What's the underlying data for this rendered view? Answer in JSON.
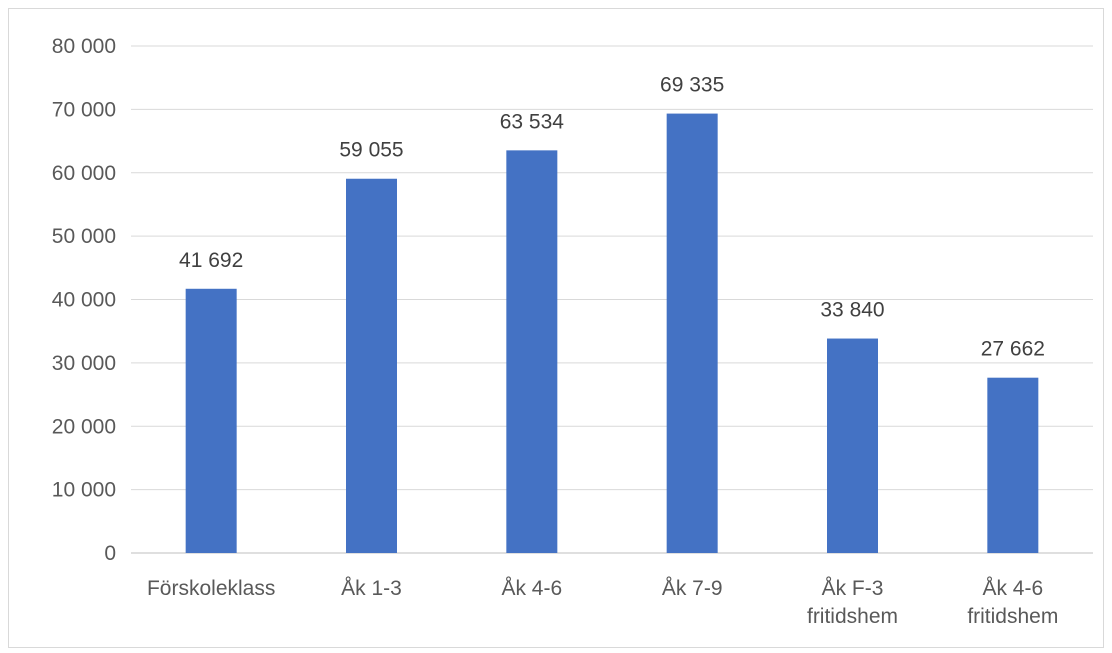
{
  "chart_data": {
    "type": "bar",
    "categories": [
      [
        "Förskoleklass"
      ],
      [
        "Åk 1-3"
      ],
      [
        "Åk 4-6"
      ],
      [
        "Åk 7-9"
      ],
      [
        "Åk F-3",
        "fritidshem"
      ],
      [
        "Åk 4-6",
        "fritidshem"
      ]
    ],
    "values": [
      41692,
      59055,
      63534,
      69335,
      33840,
      27662
    ],
    "data_labels": [
      "41 692",
      "59 055",
      "63 534",
      "69 335",
      "33 840",
      "27 662"
    ],
    "y_ticks": [
      0,
      10000,
      20000,
      30000,
      40000,
      50000,
      60000,
      70000,
      80000
    ],
    "y_tick_labels": [
      "0",
      "10 000",
      "20 000",
      "30 000",
      "40 000",
      "50 000",
      "60 000",
      "70 000",
      "80 000"
    ],
    "ylim": [
      0,
      80000
    ],
    "grid": true,
    "legend": "none",
    "bar_color": "#4472c4"
  }
}
